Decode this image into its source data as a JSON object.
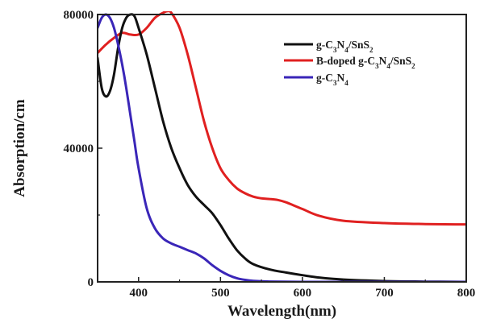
{
  "chart_data": {
    "type": "line",
    "xlabel": "Wavelength(nm)",
    "ylabel": "Absorption/cm",
    "xlim": [
      350,
      800
    ],
    "ylim": [
      0,
      80000
    ],
    "xticks": [
      400,
      500,
      600,
      700,
      800
    ],
    "yticks": [
      0,
      40000,
      80000
    ],
    "grid": false,
    "legend_position": "top-right",
    "series": [
      {
        "name": "g-C3N4/SnS2",
        "legend_html": "g-C<tspan baseline-shift=\"sub\" font-size=\"9\">3</tspan>N<tspan baseline-shift=\"sub\" font-size=\"9\">4</tspan>/SnS<tspan baseline-shift=\"sub\" font-size=\"9\">2</tspan>",
        "color": "#111111",
        "x": [
          350,
          355,
          360,
          365,
          370,
          375,
          380,
          385,
          390,
          395,
          400,
          410,
          420,
          430,
          440,
          450,
          460,
          470,
          480,
          490,
          500,
          510,
          520,
          530,
          540,
          560,
          580,
          600,
          620,
          650,
          700,
          750,
          800
        ],
        "y": [
          67000,
          58000,
          55500,
          57000,
          62000,
          70000,
          76000,
          79000,
          80000,
          79500,
          76000,
          68000,
          58000,
          48000,
          40000,
          34000,
          29000,
          25500,
          23000,
          20500,
          17000,
          13000,
          9500,
          7000,
          5300,
          3700,
          2800,
          2000,
          1300,
          700,
          250,
          80,
          0
        ]
      },
      {
        "name": "B-doped g-C3N4/SnS2",
        "legend_html": "B-doped g-C<tspan baseline-shift=\"sub\" font-size=\"9\">3</tspan>N<tspan baseline-shift=\"sub\" font-size=\"9\">4</tspan>/SnS<tspan baseline-shift=\"sub\" font-size=\"9\">2</tspan>",
        "color": "#e02020",
        "x": [
          350,
          360,
          370,
          380,
          390,
          400,
          410,
          420,
          430,
          435,
          440,
          450,
          460,
          470,
          480,
          490,
          500,
          510,
          520,
          530,
          540,
          550,
          560,
          570,
          580,
          600,
          620,
          650,
          700,
          750,
          800
        ],
        "y": [
          68500,
          71000,
          73000,
          74500,
          74000,
          74000,
          76000,
          79000,
          80500,
          81000,
          80500,
          76000,
          68000,
          58000,
          48000,
          40000,
          34000,
          30500,
          28000,
          26500,
          25500,
          25000,
          24800,
          24500,
          23800,
          21800,
          19800,
          18300,
          17600,
          17300,
          17200
        ]
      },
      {
        "name": "g-C3N4",
        "legend_html": "g-C<tspan baseline-shift=\"sub\" font-size=\"9\">3</tspan>N<tspan baseline-shift=\"sub\" font-size=\"9\">4</tspan>",
        "color": "#3a26b8",
        "x": [
          350,
          355,
          360,
          365,
          370,
          375,
          380,
          385,
          390,
          395,
          400,
          410,
          420,
          430,
          440,
          450,
          460,
          470,
          480,
          490,
          500,
          510,
          520,
          530,
          540,
          560,
          600,
          650,
          700,
          800
        ],
        "y": [
          76000,
          79000,
          80000,
          79000,
          76000,
          71000,
          65000,
          58000,
          50000,
          42000,
          34000,
          22000,
          16000,
          13000,
          11500,
          10500,
          9500,
          8500,
          7000,
          5000,
          3300,
          2000,
          1100,
          600,
          300,
          100,
          0,
          0,
          0,
          0
        ]
      }
    ]
  }
}
